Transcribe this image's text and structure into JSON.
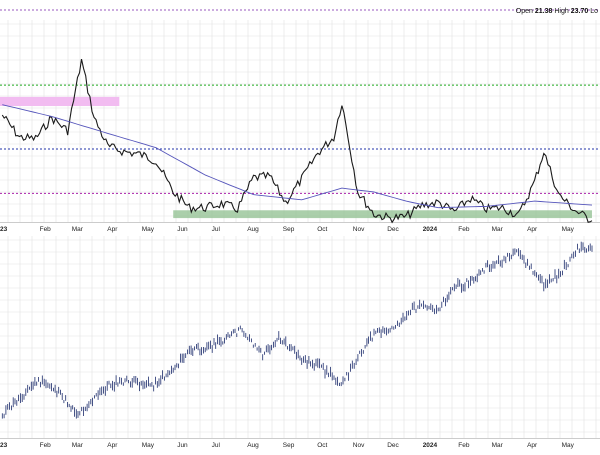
{
  "header": {
    "open_label": "Open",
    "open_value": "21.38",
    "high_label": "High",
    "high_value": "23.70",
    "low_label": "Lo"
  },
  "colors": {
    "background": "#ffffff",
    "grid": "#e1e1e1",
    "price_line": "#1a1a1a",
    "moving_average": "#5555bb",
    "upper_green_line": "#22aa22",
    "blue_dotted_line": "#2233aa",
    "purple_dotted_line": "#aa22aa",
    "pink_zone": "#f1b5f0",
    "green_zone": "#8fbf8f",
    "bars": "#1a2a6a",
    "top_purple_line": "#7722aa"
  },
  "x_axis": {
    "top_labels": [
      "23",
      "Feb",
      "Mar",
      "Apr",
      "May",
      "Jun",
      "Jul",
      "Aug",
      "Sep",
      "Oct",
      "Nov",
      "Dec",
      "2024",
      "Feb",
      "Mar",
      "Apr",
      "May"
    ],
    "bottom_labels": [
      "23",
      "Feb",
      "Mar",
      "Apr",
      "May",
      "Jun",
      "Jul",
      "Aug",
      "Sep",
      "Oct",
      "Nov",
      "Dec",
      "2024",
      "Feb",
      "Mar",
      "Apr",
      "May"
    ]
  },
  "chart_data": [
    {
      "type": "line",
      "panel": "upper",
      "x_start": "2023-01",
      "x_end": "2024-05",
      "series": [
        {
          "name": "",
          "style": "price",
          "x": [
            "2023-01-03",
            "2023-01-18",
            "2023-02-01",
            "2023-02-15",
            "2023-03-01",
            "2023-03-13",
            "2023-03-24",
            "2023-04-05",
            "2023-04-19",
            "2023-05-03",
            "2023-05-17",
            "2023-06-01",
            "2023-06-15",
            "2023-06-29",
            "2023-07-13",
            "2023-07-27",
            "2023-08-10",
            "2023-08-24",
            "2023-09-07",
            "2023-09-21",
            "2023-10-05",
            "2023-10-19",
            "2023-10-26",
            "2023-11-09",
            "2023-11-23",
            "2023-12-07",
            "2023-12-21",
            "2024-01-04",
            "2024-01-18",
            "2024-02-01",
            "2024-02-15",
            "2024-02-29",
            "2024-03-14",
            "2024-03-28",
            "2024-04-11",
            "2024-04-19",
            "2024-05-02",
            "2024-05-16",
            "2024-05-31"
          ],
          "values": [
            20.7,
            19.0,
            18.9,
            20.5,
            19.5,
            24.9,
            20.5,
            18.3,
            17.9,
            17.7,
            17.2,
            14.8,
            13.6,
            13.6,
            13.9,
            13.5,
            15.9,
            16.0,
            14.0,
            15.8,
            17.8,
            19.0,
            21.7,
            14.8,
            13.1,
            12.8,
            12.9,
            13.8,
            14.0,
            13.3,
            14.3,
            13.5,
            13.6,
            13.0,
            15.6,
            17.9,
            14.6,
            13.4,
            12.6
          ]
        },
        {
          "name": "",
          "style": "moving-average",
          "x": [
            "2023-01-03",
            "2023-02-15",
            "2023-04-05",
            "2023-05-17",
            "2023-06-29",
            "2023-08-10",
            "2023-09-21",
            "2023-10-26",
            "2023-11-23",
            "2023-12-21",
            "2024-01-18",
            "2024-02-29",
            "2024-04-11",
            "2024-05-31"
          ],
          "values": [
            21.5,
            20.6,
            19.3,
            18.2,
            16.1,
            14.6,
            14.2,
            15.1,
            14.8,
            14.1,
            13.6,
            13.7,
            14.1,
            13.8
          ]
        }
      ],
      "reference_lines": [
        {
          "y": 23.0,
          "style": "green-dotted"
        },
        {
          "y": 18.1,
          "style": "blue-dotted"
        },
        {
          "y": 14.7,
          "style": "purple-dotted"
        }
      ],
      "zones": [
        {
          "x_from": "2023-01-01",
          "x_to": "2023-04-15",
          "y_from": 21.4,
          "y_to": 22.1,
          "style": "pink"
        },
        {
          "x_from": "2023-06-01",
          "x_to": "2024-05-31",
          "y_from": 12.8,
          "y_to": 13.4,
          "style": "green"
        }
      ],
      "ylim": [
        12.5,
        28.0
      ],
      "grid": true,
      "legend": ""
    },
    {
      "type": "line",
      "panel": "lower",
      "x_start": "2023-01",
      "x_end": "2024-05",
      "series": [
        {
          "name": "",
          "style": "price-bars",
          "x": [
            "2023-01-03",
            "2023-02-02",
            "2023-02-15",
            "2023-03-10",
            "2023-04-06",
            "2023-04-20",
            "2023-05-15",
            "2023-06-01",
            "2023-06-15",
            "2023-07-05",
            "2023-07-31",
            "2023-08-18",
            "2023-09-01",
            "2023-09-21",
            "2023-10-05",
            "2023-10-27",
            "2023-11-09",
            "2023-11-23",
            "2023-12-07",
            "2023-12-28",
            "2024-01-18",
            "2024-02-01",
            "2024-02-15",
            "2024-03-01",
            "2024-03-28",
            "2024-04-19",
            "2024-05-02",
            "2024-05-20",
            "2024-05-31"
          ],
          "values": [
            3850,
            4140,
            4100,
            3860,
            4110,
            4140,
            4110,
            4250,
            4400,
            4450,
            4590,
            4370,
            4520,
            4330,
            4280,
            4120,
            4360,
            4550,
            4580,
            4780,
            4770,
            4960,
            5000,
            5130,
            5250,
            4980,
            5060,
            5300,
            5290
          ]
        }
      ],
      "ylim": [
        3650,
        5400
      ],
      "grid": true,
      "legend": ""
    }
  ]
}
